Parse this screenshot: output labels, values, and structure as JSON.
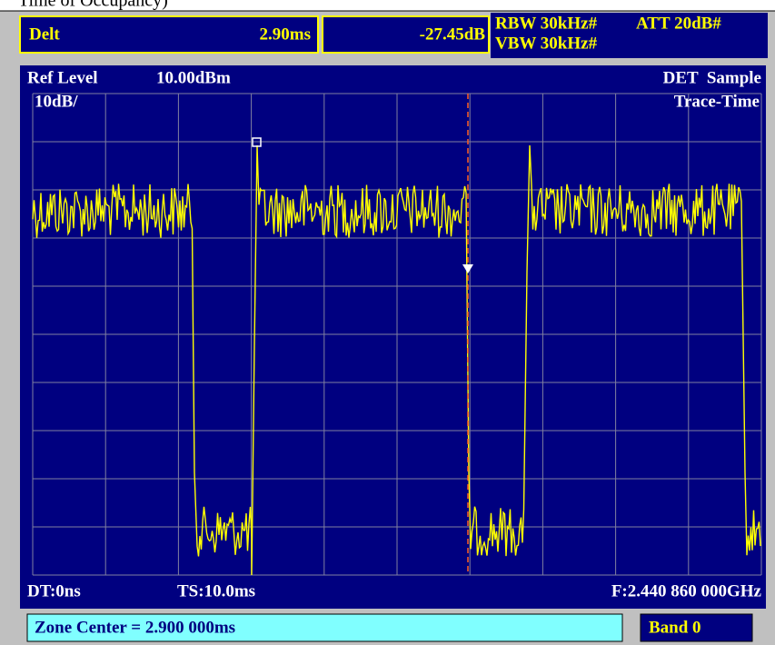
{
  "caption": "Time of Occupancy)",
  "status": {
    "mode": "Delt",
    "delta_time": "2.90ms",
    "delta_level": "-27.45dB",
    "rbw": "RBW 30kHz#",
    "vbw": "VBW 30kHz#",
    "att": "ATT 20dB#"
  },
  "screen": {
    "ref_label": "Ref Level",
    "ref_value": "10.00dBm",
    "detector": "DET  Sample",
    "scale": "10dB/",
    "trace_mode": "Trace-Time",
    "dt": "DT:0ns",
    "ts": "TS:10.0ms",
    "freq": "F:2.440 860 000GHz"
  },
  "footer": {
    "zone": "Zone Center = 2.900 000ms",
    "band": "Band 0"
  }
}
